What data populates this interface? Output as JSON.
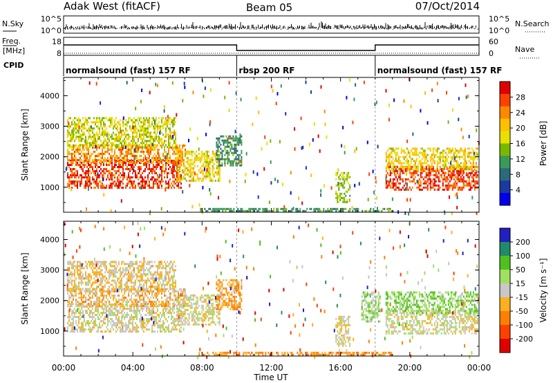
{
  "header": {
    "station": "Adak West (fitACF)",
    "beam": "Beam 05",
    "date": "07/Oct/2014"
  },
  "noise_panel": {
    "left_label": "N.Sky",
    "right_label": "N.Search",
    "left_ticks": [
      "10^5",
      "10^0"
    ],
    "right_ticks": [
      "10^5",
      "10^0"
    ]
  },
  "freq_panel": {
    "left_label_top": "Freq.",
    "left_label_unit": "[MHz]",
    "right_label": "Nave",
    "left_ticks": [
      "18",
      "8"
    ],
    "right_ticks": [
      "60",
      "0"
    ],
    "cpid_label": "CPID"
  },
  "cpid_segments": [
    {
      "label": "normalsound (fast) 157 RF",
      "start_hour": 0,
      "end_hour": 10
    },
    {
      "label": "rbsp 200 RF",
      "start_hour": 10,
      "end_hour": 18
    },
    {
      "label": "normalsound (fast) 157 RF",
      "start_hour": 18,
      "end_hour": 24
    }
  ],
  "power_colorbar": {
    "label": "Power [dB]",
    "ticks": [
      "28",
      "24",
      "20",
      "16",
      "12",
      "8",
      "4"
    ],
    "colors": [
      "#e00000",
      "#ff4000",
      "#ff8800",
      "#ffc000",
      "#e8e000",
      "#7ab800",
      "#3a9a5a",
      "#2a6a7a",
      "#1a3aa0",
      "#0000ee"
    ]
  },
  "velocity_colorbar": {
    "label": "Velocity [m s⁻¹]",
    "ticks": [
      "200",
      "100",
      "50",
      "15",
      "-15",
      "-50",
      "-100",
      "-200"
    ],
    "colors": [
      "#2020c0",
      "#208a6a",
      "#50c020",
      "#a0e060",
      "#c8c8c8",
      "#ffb020",
      "#ff8000",
      "#ff4000",
      "#e00000"
    ]
  },
  "x_axis": {
    "label": "Time UT",
    "ticks": [
      "00:00",
      "04:00",
      "08:00",
      "12:00",
      "16:00",
      "20:00",
      "00:00"
    ]
  },
  "chart_data": [
    {
      "type": "heatmap",
      "title": "Power",
      "ylabel": "Slant Range [km]",
      "xlabel": "Time UT",
      "ylim": [
        180,
        4600
      ],
      "xlim_hours": [
        0,
        24
      ],
      "y_ticks": [
        1000,
        2000,
        3000,
        4000
      ],
      "clim": [
        0,
        30
      ],
      "echo_regions": [
        {
          "t_start": 0.2,
          "t_end": 6.8,
          "range_min": 1000,
          "range_max": 1900,
          "value": 26
        },
        {
          "t_start": 0.2,
          "t_end": 7.0,
          "range_min": 1800,
          "range_max": 2400,
          "value": 22
        },
        {
          "t_start": 0.2,
          "t_end": 6.5,
          "range_min": 2300,
          "range_max": 3300,
          "value": 16
        },
        {
          "t_start": 6.5,
          "t_end": 9.0,
          "range_min": 1200,
          "range_max": 2200,
          "value": 18
        },
        {
          "t_start": 8.8,
          "t_end": 10.3,
          "range_min": 1700,
          "range_max": 2700,
          "value": 10
        },
        {
          "t_start": 15.7,
          "t_end": 16.5,
          "range_min": 500,
          "range_max": 1500,
          "value": 14
        },
        {
          "t_start": 18.6,
          "t_end": 23.9,
          "range_min": 900,
          "range_max": 1700,
          "value": 26
        },
        {
          "t_start": 18.6,
          "t_end": 23.9,
          "range_min": 1600,
          "range_max": 2300,
          "value": 18
        },
        {
          "t_start": 7.8,
          "t_end": 19.0,
          "range_min": 200,
          "range_max": 320,
          "value": 10
        }
      ]
    },
    {
      "type": "heatmap",
      "title": "Velocity",
      "ylabel": "Slant Range [km]",
      "xlabel": "Time UT",
      "ylim": [
        180,
        4600
      ],
      "xlim_hours": [
        0,
        24
      ],
      "y_ticks": [
        1000,
        2000,
        3000,
        4000
      ],
      "clim": [
        -200,
        200
      ],
      "echo_regions": [
        {
          "t_start": 0.2,
          "t_end": 6.8,
          "range_min": 1000,
          "range_max": 1900,
          "value": 0
        },
        {
          "t_start": 0.2,
          "t_end": 7.0,
          "range_min": 1800,
          "range_max": 2400,
          "value": -40
        },
        {
          "t_start": 0.2,
          "t_end": 6.5,
          "range_min": 2300,
          "range_max": 3300,
          "value": -20
        },
        {
          "t_start": 6.5,
          "t_end": 9.0,
          "range_min": 1200,
          "range_max": 2200,
          "value": 0
        },
        {
          "t_start": 8.8,
          "t_end": 10.3,
          "range_min": 1700,
          "range_max": 2700,
          "value": -60
        },
        {
          "t_start": 15.7,
          "t_end": 16.5,
          "range_min": 500,
          "range_max": 1500,
          "value": 0
        },
        {
          "t_start": 17.2,
          "t_end": 18.3,
          "range_min": 1300,
          "range_max": 2300,
          "value": 40
        },
        {
          "t_start": 18.6,
          "t_end": 23.9,
          "range_min": 900,
          "range_max": 1700,
          "value": 0
        },
        {
          "t_start": 18.6,
          "t_end": 23.9,
          "range_min": 1600,
          "range_max": 2300,
          "value": 60
        },
        {
          "t_start": 7.8,
          "t_end": 19.0,
          "range_min": 200,
          "range_max": 320,
          "value": -80
        }
      ]
    }
  ]
}
